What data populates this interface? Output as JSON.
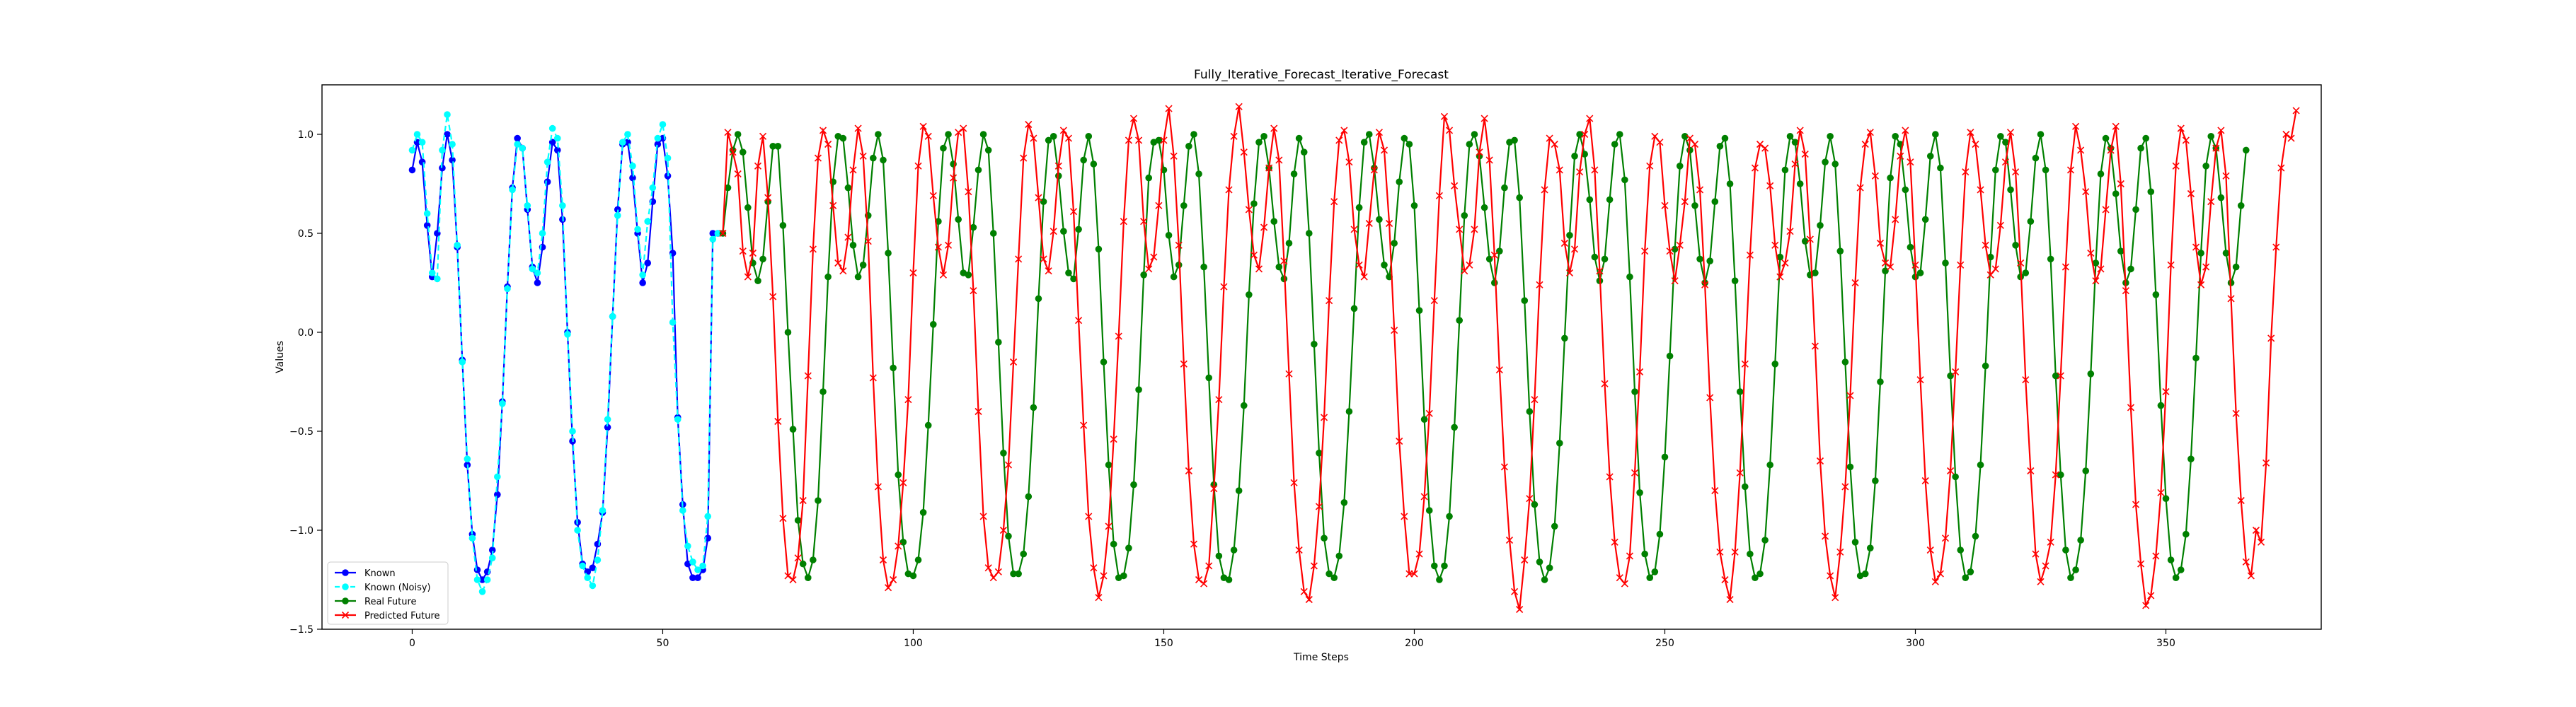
{
  "chart_data": {
    "type": "line",
    "title": "Fully_Iterative_Forecast_Iterative_Forecast",
    "xlabel": "Time Steps",
    "ylabel": "Values",
    "xlim": [
      -18,
      381
    ],
    "ylim": [
      -1.5,
      1.25
    ],
    "x_ticks": [
      0,
      50,
      100,
      150,
      200,
      250,
      300,
      350
    ],
    "y_ticks": [
      -1.5,
      -1.0,
      -0.5,
      0.0,
      0.5,
      1.0
    ],
    "x_tick_labels": [
      "0",
      "50",
      "100",
      "150",
      "200",
      "250",
      "300",
      "350"
    ],
    "y_tick_labels": [
      "−1.5",
      "−1.0",
      "−0.5",
      "0.0",
      "0.5",
      "1.0"
    ],
    "grid": false,
    "legend_position": "lower-left",
    "series": [
      {
        "name": "Known",
        "color": "#0000ff",
        "marker": "circle",
        "linestyle": "solid",
        "x_start": 0,
        "values": [
          0.82,
          0.96,
          0.86,
          0.54,
          0.28,
          0.5,
          0.83,
          1.0,
          0.87,
          0.43,
          -0.14,
          -0.67,
          -1.02,
          -1.2,
          -1.25,
          -1.21,
          -1.1,
          -0.82,
          -0.35,
          0.23,
          0.73,
          0.98,
          0.93,
          0.62,
          0.33,
          0.25,
          0.43,
          0.76,
          0.96,
          0.92,
          0.57,
          0.0,
          -0.55,
          -0.96,
          -1.17,
          -1.21,
          -1.19,
          -1.07,
          -0.91,
          -0.48,
          0.08,
          0.62,
          0.95,
          0.96,
          0.78,
          0.5,
          0.25,
          0.35,
          0.66,
          0.95,
          0.98,
          0.79,
          0.4,
          -0.43,
          -0.87,
          -1.17,
          -1.24,
          -1.24,
          -1.2,
          -1.04,
          0.5,
          0.5
        ]
      },
      {
        "name": "Known (Noisy)",
        "color": "#00ffff",
        "marker": "circle",
        "linestyle": "dashed",
        "x_start": 0,
        "values": [
          0.92,
          1.0,
          0.96,
          0.6,
          0.3,
          0.27,
          0.92,
          1.1,
          0.95,
          0.44,
          -0.15,
          -0.64,
          -1.04,
          -1.25,
          -1.31,
          -1.25,
          -1.14,
          -0.73,
          -0.36,
          0.22,
          0.72,
          0.95,
          0.93,
          0.64,
          0.32,
          0.3,
          0.5,
          0.86,
          1.03,
          0.98,
          0.64,
          -0.01,
          -0.5,
          -1.0,
          -1.18,
          -1.24,
          -1.28,
          -1.15,
          -0.9,
          -0.44,
          0.08,
          0.59,
          0.96,
          1.0,
          0.84,
          0.52,
          0.29,
          0.56,
          0.73,
          0.98,
          1.05,
          0.88,
          0.05,
          -0.44,
          -0.9,
          -1.08,
          -1.16,
          -1.2,
          -1.18,
          -0.93,
          0.47,
          0.5
        ]
      },
      {
        "name": "Real Future",
        "color": "#008000",
        "marker": "circle",
        "linestyle": "solid",
        "x_start": 62,
        "values": [
          0.5,
          0.73,
          0.92,
          1.0,
          0.91,
          0.63,
          0.35,
          0.26,
          0.37,
          0.66,
          0.94,
          0.94,
          0.54,
          0.0,
          -0.49,
          -0.95,
          -1.17,
          -1.24,
          -1.15,
          -0.85,
          -0.3,
          0.28,
          0.76,
          0.99,
          0.98,
          0.73,
          0.44,
          0.28,
          0.34,
          0.59,
          0.88,
          1.0,
          0.87,
          0.4,
          -0.18,
          -0.72,
          -1.06,
          -1.22,
          -1.23,
          -1.15,
          -0.91,
          -0.47,
          0.04,
          0.56,
          0.93,
          1.0,
          0.85,
          0.57,
          0.3,
          0.29,
          0.53,
          0.82,
          1.0,
          0.92,
          0.5,
          -0.05,
          -0.61,
          -1.03,
          -1.22,
          -1.22,
          -1.12,
          -0.83,
          -0.38,
          0.17,
          0.66,
          0.97,
          0.99,
          0.79,
          0.51,
          0.3,
          0.27,
          0.52,
          0.87,
          0.99,
          0.85,
          0.42,
          -0.15,
          -0.67,
          -1.07,
          -1.24,
          -1.23,
          -1.09,
          -0.77,
          -0.29,
          0.29,
          0.78,
          0.96,
          0.97,
          0.82,
          0.49,
          0.28,
          0.34,
          0.64,
          0.94,
          1.0,
          0.8,
          0.33,
          -0.23,
          -0.77,
          -1.13,
          -1.24,
          -1.25,
          -1.1,
          -0.8,
          -0.37,
          0.19,
          0.65,
          0.96,
          0.99,
          0.83,
          0.56,
          0.33,
          0.27,
          0.45,
          0.8,
          0.98,
          0.91,
          0.5,
          -0.06,
          -0.61,
          -1.04,
          -1.22,
          -1.24,
          -1.13,
          -0.86,
          -0.4,
          0.12,
          0.63,
          0.96,
          1.0,
          0.83,
          0.57,
          0.34,
          0.28,
          0.45,
          0.76,
          0.98,
          0.95,
          0.64,
          0.11,
          -0.44,
          -0.9,
          -1.18,
          -1.25,
          -1.18,
          -0.93,
          -0.48,
          0.06,
          0.59,
          0.95,
          1.0,
          0.89,
          0.63,
          0.37,
          0.25,
          0.41,
          0.73,
          0.96,
          0.97,
          0.68,
          0.16,
          -0.4,
          -0.87,
          -1.16,
          -1.25,
          -1.19,
          -0.98,
          -0.56,
          -0.03,
          0.49,
          0.89,
          1.0,
          0.9,
          0.67,
          0.38,
          0.26,
          0.37,
          0.67,
          0.95,
          1.0,
          0.77,
          0.28,
          -0.3,
          -0.81,
          -1.12,
          -1.24,
          -1.21,
          -1.02,
          -0.63,
          -0.12,
          0.42,
          0.84,
          0.99,
          0.92,
          0.64,
          0.37,
          0.25,
          0.36,
          0.66,
          0.94,
          0.98,
          0.75,
          0.26,
          -0.3,
          -0.78,
          -1.12,
          -1.24,
          -1.22,
          -1.05,
          -0.67,
          -0.16,
          0.38,
          0.82,
          0.99,
          0.96,
          0.75,
          0.46,
          0.29,
          0.3,
          0.54,
          0.86,
          0.99,
          0.85,
          0.41,
          -0.15,
          -0.68,
          -1.06,
          -1.23,
          -1.22,
          -1.09,
          -0.75,
          -0.25,
          0.31,
          0.78,
          0.99,
          0.95,
          0.72,
          0.43,
          0.28,
          0.3,
          0.57,
          0.89,
          1.0,
          0.83,
          0.35,
          -0.22,
          -0.73,
          -1.1,
          -1.24,
          -1.21,
          -1.03,
          -0.67,
          -0.17,
          0.38,
          0.82,
          0.99,
          0.96,
          0.72,
          0.44,
          0.28,
          0.3,
          0.56,
          0.88,
          1.0,
          0.82,
          0.37,
          -0.22,
          -0.72,
          -1.1,
          -1.24,
          -1.2,
          -1.05,
          -0.7,
          -0.21,
          0.35,
          0.8,
          0.98,
          0.93,
          0.7,
          0.41,
          0.25,
          0.32,
          0.62,
          0.93,
          0.98,
          0.71,
          0.19,
          -0.37,
          -0.84,
          -1.15,
          -1.24,
          -1.2,
          -1.02,
          -0.64,
          -0.13,
          0.4,
          0.84,
          0.99,
          0.93,
          0.68,
          0.4,
          0.25,
          0.33,
          0.64,
          0.92
        ]
      },
      {
        "name": "Predicted Future",
        "color": "#ff0000",
        "marker": "x",
        "linestyle": "solid",
        "x_start": 62,
        "values": [
          0.5,
          1.01,
          0.91,
          0.8,
          0.41,
          0.28,
          0.4,
          0.84,
          0.99,
          0.68,
          0.18,
          -0.45,
          -0.94,
          -1.23,
          -1.25,
          -1.14,
          -0.85,
          -0.22,
          0.42,
          0.88,
          1.02,
          0.95,
          0.64,
          0.35,
          0.31,
          0.48,
          0.82,
          1.03,
          0.89,
          0.46,
          -0.23,
          -0.78,
          -1.15,
          -1.29,
          -1.25,
          -1.08,
          -0.76,
          -0.34,
          0.3,
          0.84,
          1.04,
          0.99,
          0.69,
          0.43,
          0.29,
          0.44,
          0.78,
          1.01,
          1.03,
          0.71,
          0.21,
          -0.4,
          -0.93,
          -1.19,
          -1.24,
          -1.21,
          -1.0,
          -0.67,
          -0.15,
          0.37,
          0.88,
          1.05,
          0.98,
          0.68,
          0.37,
          0.31,
          0.51,
          0.84,
          1.02,
          0.98,
          0.61,
          0.06,
          -0.47,
          -0.93,
          -1.19,
          -1.34,
          -1.23,
          -0.98,
          -0.54,
          -0.02,
          0.56,
          0.97,
          1.08,
          0.97,
          0.56,
          0.32,
          0.38,
          0.64,
          0.97,
          1.13,
          0.89,
          0.44,
          -0.16,
          -0.7,
          -1.07,
          -1.25,
          -1.27,
          -1.18,
          -0.79,
          -0.34,
          0.23,
          0.72,
          0.99,
          1.14,
          0.91,
          0.62,
          0.39,
          0.32,
          0.53,
          0.83,
          1.03,
          0.87,
          0.36,
          -0.21,
          -0.76,
          -1.1,
          -1.31,
          -1.35,
          -1.18,
          -0.88,
          -0.43,
          0.16,
          0.66,
          0.97,
          1.02,
          0.86,
          0.52,
          0.34,
          0.28,
          0.55,
          0.82,
          1.01,
          0.92,
          0.55,
          0.01,
          -0.55,
          -0.93,
          -1.22,
          -1.22,
          -1.12,
          -0.83,
          -0.41,
          0.16,
          0.69,
          1.09,
          1.02,
          0.74,
          0.52,
          0.31,
          0.34,
          0.52,
          0.91,
          1.08,
          0.87,
          0.39,
          -0.19,
          -0.68,
          -1.05,
          -1.31,
          -1.4,
          -1.15,
          -0.84,
          -0.34,
          0.24,
          0.72,
          0.98,
          0.95,
          0.82,
          0.45,
          0.3,
          0.42,
          0.81,
          1.0,
          1.08,
          0.82,
          0.31,
          -0.26,
          -0.73,
          -1.06,
          -1.24,
          -1.27,
          -1.13,
          -0.71,
          -0.2,
          0.41,
          0.84,
          0.99,
          0.96,
          0.64,
          0.41,
          0.26,
          0.44,
          0.66,
          0.98,
          0.95,
          0.72,
          0.24,
          -0.33,
          -0.8,
          -1.11,
          -1.25,
          -1.35,
          -1.11,
          -0.71,
          -0.16,
          0.39,
          0.83,
          0.95,
          0.93,
          0.74,
          0.44,
          0.28,
          0.35,
          0.51,
          0.85,
          1.02,
          0.9,
          0.47,
          -0.07,
          -0.65,
          -1.03,
          -1.23,
          -1.34,
          -1.11,
          -0.78,
          -0.32,
          0.25,
          0.73,
          0.95,
          1.01,
          0.79,
          0.45,
          0.35,
          0.33,
          0.57,
          0.89,
          1.02,
          0.86,
          0.34,
          -0.24,
          -0.75,
          -1.1,
          -1.26,
          -1.22,
          -1.04,
          -0.7,
          -0.2,
          0.34,
          0.81,
          1.01,
          0.95,
          0.72,
          0.44,
          0.29,
          0.32,
          0.54,
          0.86,
          1.01,
          0.81,
          0.35,
          -0.24,
          -0.7,
          -1.12,
          -1.26,
          -1.18,
          -1.06,
          -0.72,
          -0.22,
          0.33,
          0.82,
          1.04,
          0.92,
          0.71,
          0.4,
          0.26,
          0.32,
          0.62,
          0.92,
          1.04,
          0.75,
          0.21,
          -0.38,
          -0.87,
          -1.17,
          -1.38,
          -1.33,
          -1.13,
          -0.81,
          -0.3,
          0.34,
          0.84,
          1.03,
          0.97,
          0.7,
          0.43,
          0.24,
          0.33,
          0.66,
          0.93,
          1.02,
          0.79,
          0.17,
          -0.41,
          -0.85,
          -1.16,
          -1.23,
          -1.0,
          -1.06,
          -0.66,
          -0.03,
          0.43,
          0.83,
          1.0,
          0.98,
          1.12
        ]
      }
    ]
  }
}
